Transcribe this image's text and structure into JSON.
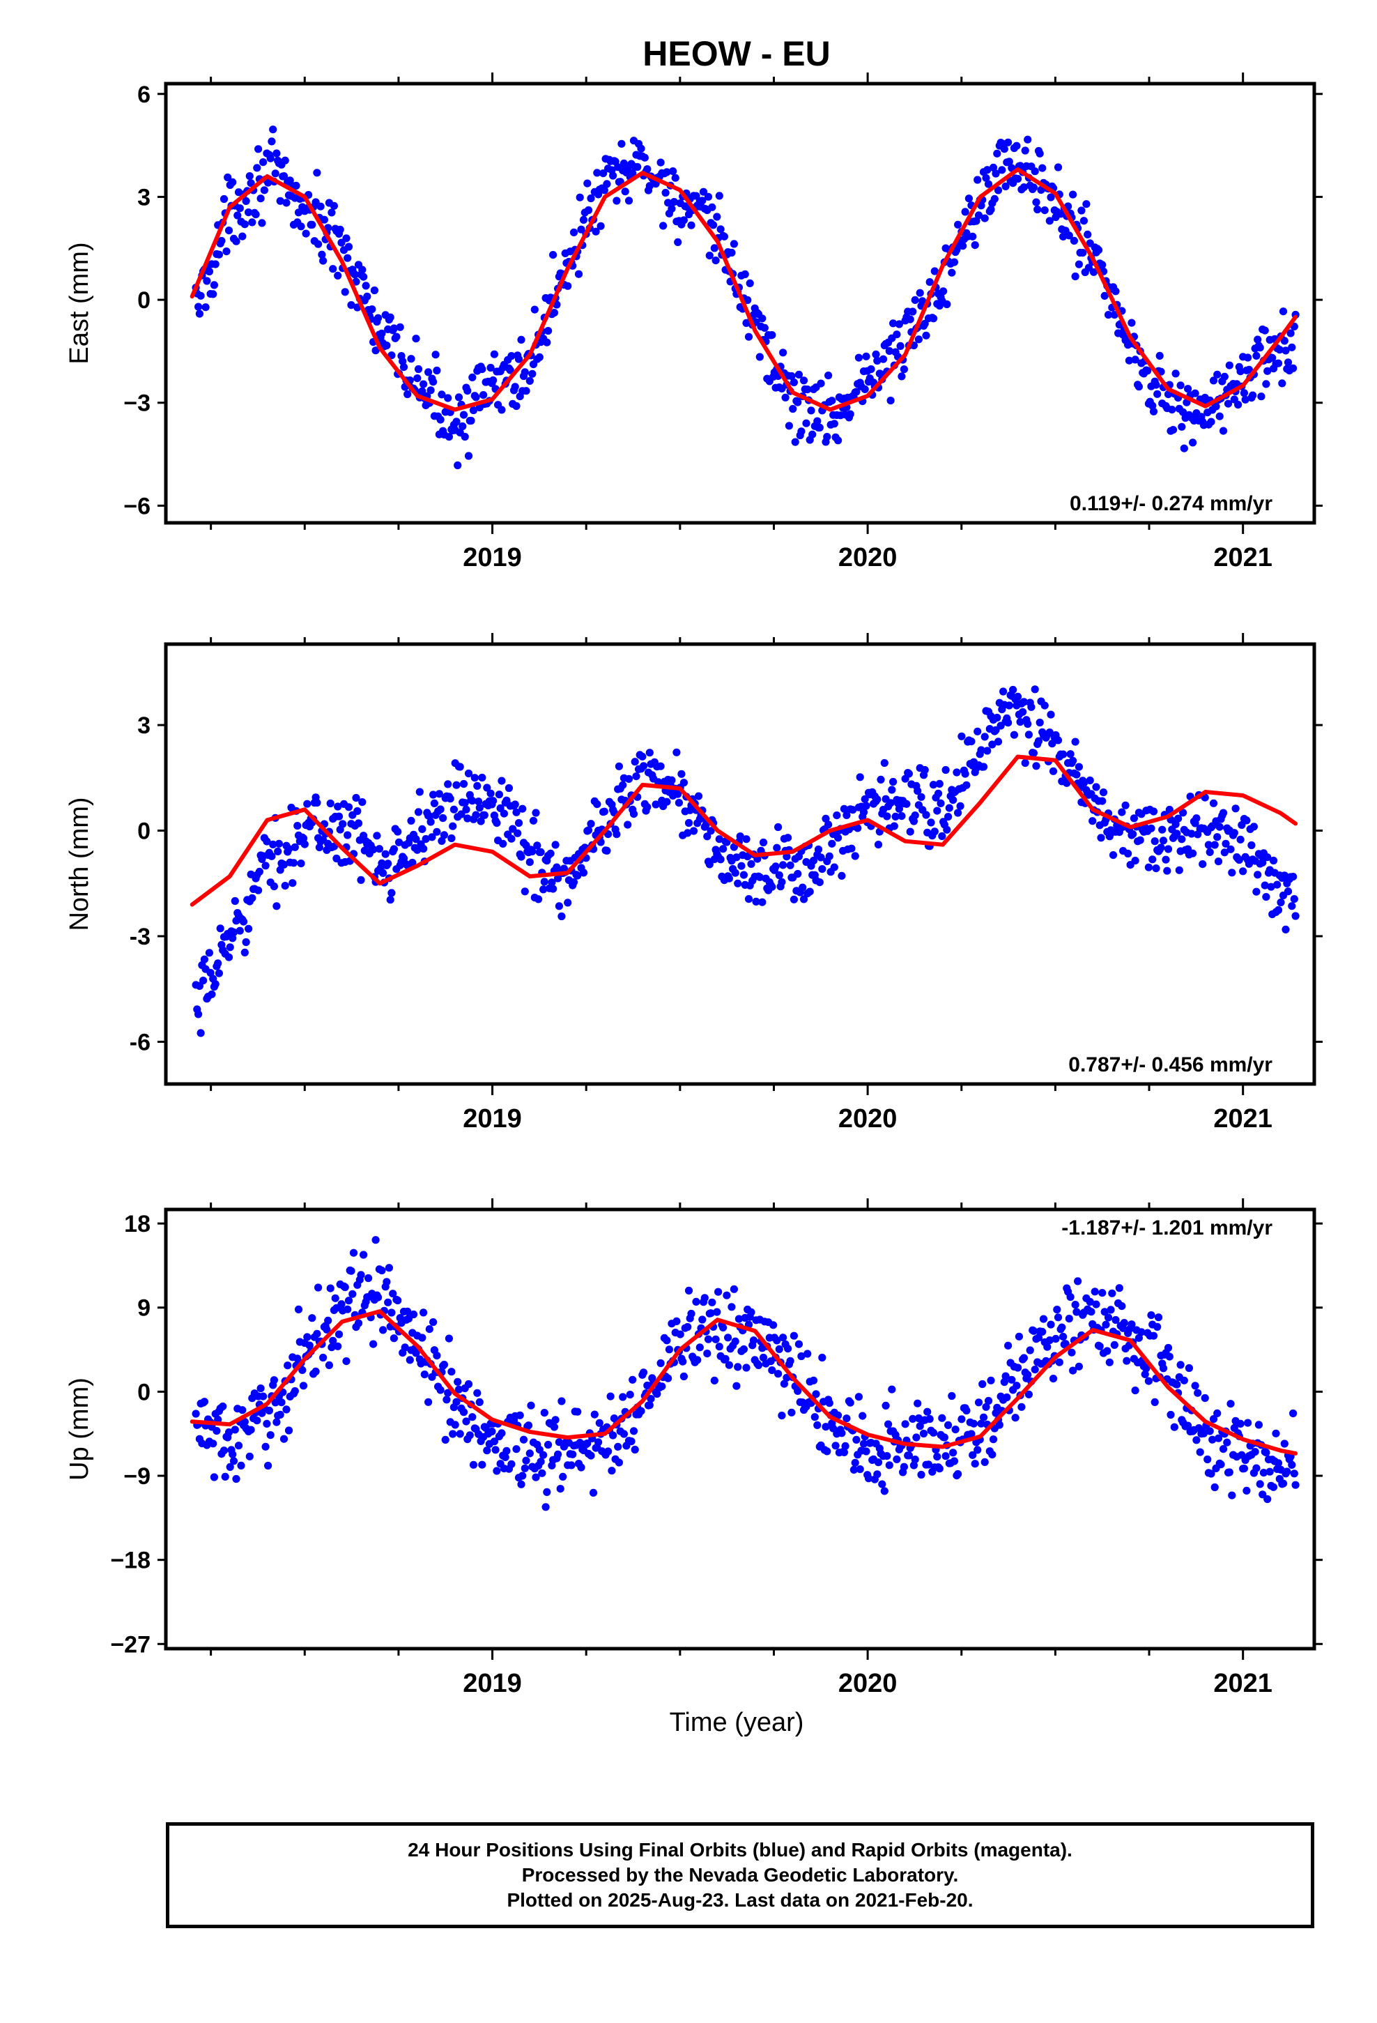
{
  "title": "HEOW - EU",
  "xlabel": "Time (year)",
  "caption": [
    "24 Hour Positions Using Final Orbits (blue) and Rapid Orbits (magenta).",
    "Processed by the Nevada Geodetic Laboratory.",
    "Plotted on 2025-Aug-23. Last data on 2021-Feb-20."
  ],
  "colors": {
    "points": "#0000ff",
    "fit": "#ff0000",
    "frame": "#000000"
  },
  "chart_data": [
    {
      "type": "scatter",
      "component": "east",
      "ylabel": "East (mm)",
      "rate_label": "0.119+/- 0.274 mm/yr",
      "rate_position": "bottom-right",
      "xlim": [
        2018.13,
        2021.19
      ],
      "ylim": [
        -6.5,
        6.3
      ],
      "xticks": [
        2019,
        2020,
        2021
      ],
      "yticks": [
        6,
        3,
        0,
        -3,
        -6
      ],
      "ytick_labels": [
        "6",
        "3",
        "0",
        "−3",
        "−6"
      ],
      "series": [
        {
          "kind": "fit",
          "x": [
            2018.2,
            2018.3,
            2018.4,
            2018.5,
            2018.6,
            2018.7,
            2018.8,
            2018.9,
            2019.0,
            2019.1,
            2019.2,
            2019.3,
            2019.4,
            2019.5,
            2019.6,
            2019.7,
            2019.8,
            2019.9,
            2020.0,
            2020.1,
            2020.2,
            2020.3,
            2020.4,
            2020.5,
            2020.6,
            2020.7,
            2020.8,
            2020.9,
            2021.0,
            2021.1,
            2021.14
          ],
          "y": [
            0.1,
            2.7,
            3.6,
            3.0,
            1.1,
            -1.4,
            -2.8,
            -3.2,
            -2.9,
            -1.6,
            0.9,
            3.0,
            3.7,
            3.2,
            1.7,
            -0.9,
            -2.7,
            -3.2,
            -2.8,
            -1.6,
            1.0,
            3.0,
            3.8,
            3.1,
            1.2,
            -1.1,
            -2.6,
            -3.1,
            -2.5,
            -1.1,
            -0.5
          ]
        },
        {
          "kind": "samples",
          "x": [
            2018.21,
            2018.3,
            2018.4,
            2018.5,
            2018.6,
            2018.7,
            2018.8,
            2018.9,
            2019.0,
            2019.1,
            2019.2,
            2019.3,
            2019.4,
            2019.5,
            2019.6,
            2019.7,
            2019.8,
            2019.9,
            2020.0,
            2020.1,
            2020.2,
            2020.3,
            2020.4,
            2020.5,
            2020.6,
            2020.7,
            2020.8,
            2020.9,
            2021.0,
            2021.1
          ],
          "y": [
            -0.3,
            2.5,
            3.8,
            2.6,
            1.6,
            -1.0,
            -2.4,
            -3.5,
            -2.6,
            -1.9,
            1.2,
            3.3,
            4.0,
            2.8,
            1.9,
            -0.6,
            -3.0,
            -3.4,
            -2.3,
            -1.3,
            0.6,
            3.3,
            4.1,
            2.7,
            1.5,
            -1.4,
            -2.9,
            -3.4,
            -2.3,
            -1.5
          ],
          "spread": 0.9
        }
      ]
    },
    {
      "type": "scatter",
      "component": "north",
      "ylabel": "North (mm)",
      "rate_label": "0.787+/- 0.456 mm/yr",
      "rate_position": "bottom-right",
      "xlim": [
        2018.13,
        2021.19
      ],
      "ylim": [
        -7.2,
        5.3
      ],
      "xticks": [
        2019,
        2020,
        2021
      ],
      "yticks": [
        3,
        0,
        -3,
        -6
      ],
      "ytick_labels": [
        "3",
        "0",
        "-3",
        "-6"
      ],
      "series": [
        {
          "kind": "fit",
          "x": [
            2018.2,
            2018.3,
            2018.4,
            2018.5,
            2018.6,
            2018.7,
            2018.8,
            2018.9,
            2019.0,
            2019.1,
            2019.2,
            2019.3,
            2019.4,
            2019.5,
            2019.6,
            2019.7,
            2019.8,
            2019.9,
            2020.0,
            2020.1,
            2020.2,
            2020.3,
            2020.4,
            2020.5,
            2020.6,
            2020.7,
            2020.8,
            2020.9,
            2021.0,
            2021.1,
            2021.14
          ],
          "y": [
            -2.1,
            -1.3,
            0.3,
            0.6,
            -0.5,
            -1.5,
            -1.0,
            -0.4,
            -0.6,
            -1.3,
            -1.2,
            0.0,
            1.3,
            1.2,
            0.0,
            -0.7,
            -0.6,
            0.0,
            0.3,
            -0.3,
            -0.4,
            0.8,
            2.1,
            2.0,
            0.6,
            0.1,
            0.4,
            1.1,
            1.0,
            0.5,
            0.2
          ]
        },
        {
          "kind": "samples",
          "x": [
            2018.21,
            2018.3,
            2018.4,
            2018.5,
            2018.6,
            2018.7,
            2018.8,
            2018.9,
            2019.0,
            2019.1,
            2019.2,
            2019.3,
            2019.4,
            2019.5,
            2019.6,
            2019.7,
            2019.8,
            2019.9,
            2020.0,
            2020.1,
            2020.2,
            2020.3,
            2020.4,
            2020.5,
            2020.6,
            2020.7,
            2020.8,
            2020.9,
            2021.0,
            2021.1
          ],
          "y": [
            -5.3,
            -3.0,
            -1.0,
            0.0,
            0.1,
            -0.8,
            -0.2,
            0.8,
            1.1,
            -0.6,
            -1.5,
            0.2,
            1.7,
            1.1,
            -0.6,
            -1.3,
            -1.2,
            -0.6,
            0.4,
            0.9,
            0.4,
            2.5,
            3.4,
            2.4,
            0.6,
            -0.2,
            -0.4,
            0.2,
            -0.3,
            -1.7
          ],
          "spread": 0.9
        }
      ]
    },
    {
      "type": "scatter",
      "component": "up",
      "ylabel": "Up (mm)",
      "rate_label": "-1.187+/- 1.201 mm/yr",
      "rate_position": "top-right",
      "xlim": [
        2018.13,
        2021.19
      ],
      "ylim": [
        -27.5,
        19.5
      ],
      "xticks": [
        2019,
        2020,
        2021
      ],
      "yticks": [
        18,
        9,
        0,
        -9,
        -18,
        -27
      ],
      "ytick_labels": [
        "18",
        "9",
        "0",
        "−9",
        "−18",
        "−27"
      ],
      "series": [
        {
          "kind": "fit",
          "x": [
            2018.2,
            2018.3,
            2018.4,
            2018.5,
            2018.6,
            2018.7,
            2018.8,
            2018.9,
            2019.0,
            2019.1,
            2019.2,
            2019.3,
            2019.4,
            2019.5,
            2019.6,
            2019.7,
            2019.8,
            2019.9,
            2020.0,
            2020.1,
            2020.2,
            2020.3,
            2020.4,
            2020.5,
            2020.6,
            2020.7,
            2020.8,
            2020.9,
            2021.0,
            2021.1,
            2021.14
          ],
          "y": [
            -3.2,
            -3.5,
            -1.3,
            3.5,
            7.5,
            8.6,
            4.9,
            -0.2,
            -3.0,
            -4.3,
            -4.9,
            -4.5,
            -1.0,
            4.5,
            7.7,
            6.5,
            1.5,
            -2.7,
            -4.6,
            -5.6,
            -5.9,
            -4.8,
            -0.7,
            3.7,
            6.6,
            5.5,
            0.5,
            -3.2,
            -5.1,
            -6.3,
            -6.6
          ]
        },
        {
          "kind": "samples",
          "x": [
            2018.21,
            2018.3,
            2018.4,
            2018.5,
            2018.6,
            2018.7,
            2018.8,
            2018.9,
            2019.0,
            2019.1,
            2019.2,
            2019.3,
            2019.4,
            2019.5,
            2019.6,
            2019.7,
            2019.8,
            2019.9,
            2020.0,
            2020.1,
            2020.2,
            2020.3,
            2020.4,
            2020.5,
            2020.6,
            2020.7,
            2020.8,
            2020.9,
            2021.0,
            2021.1
          ],
          "y": [
            -3.0,
            -6.0,
            -3.0,
            4.0,
            9.5,
            10.5,
            5.0,
            -1.0,
            -5.0,
            -6.0,
            -6.5,
            -5.5,
            -1.0,
            5.0,
            7.0,
            5.0,
            2.0,
            -3.0,
            -6.5,
            -5.5,
            -5.0,
            -4.0,
            1.0,
            6.0,
            8.5,
            5.5,
            2.0,
            -5.0,
            -7.0,
            -8.0
          ],
          "spread": 4.0
        }
      ]
    }
  ]
}
